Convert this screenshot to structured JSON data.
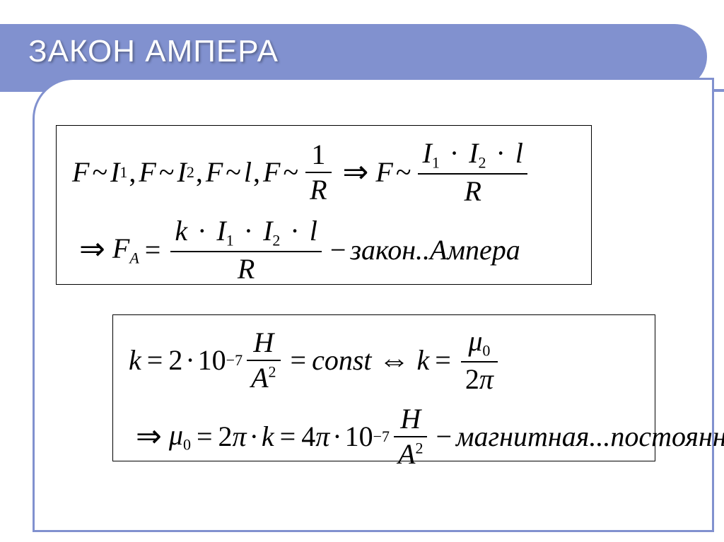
{
  "header": {
    "title": "ЗАКОН АМПЕРА"
  },
  "colors": {
    "accent": "#8191cf",
    "link_rule": "#8191cf",
    "fg": "#000000",
    "bg": "#ffffff"
  },
  "symbols": {
    "F": "F",
    "I": "I",
    "l": "l",
    "R": "R",
    "k": "k",
    "H": "H",
    "A": "A",
    "mu": "μ",
    "pi": "π",
    "one": "1",
    "two": "2",
    "zero": "0",
    "const": "const",
    "k_val": "2",
    "k_exp": "−7",
    "mu_exp": "−7",
    "mu_coef": "4",
    "ten": "10",
    "tilde": "~",
    "dot": "·",
    "eq": "=",
    "arrow": "⇒",
    "iff": "⇔",
    "minus": "−",
    "comma": ",",
    "label_law": "закон..Ампера",
    "label_mag": "магнитная...постоянная",
    "A_sub": "A"
  }
}
